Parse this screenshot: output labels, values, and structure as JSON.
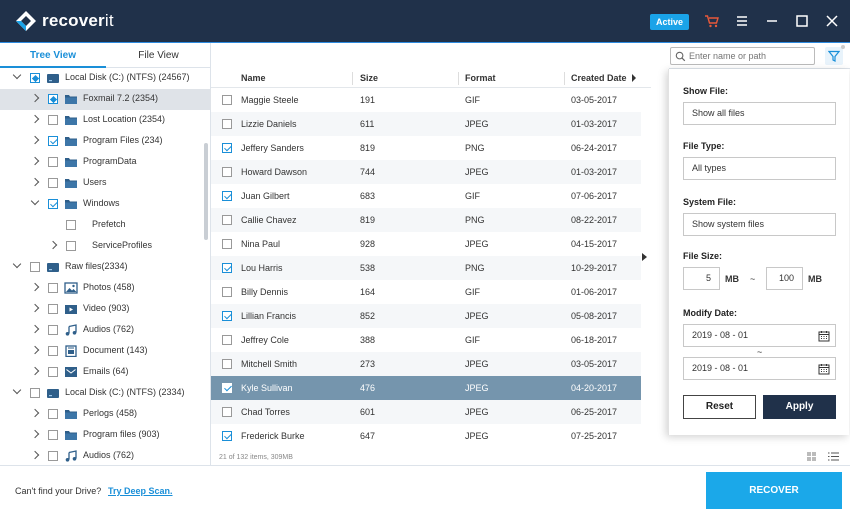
{
  "app": {
    "name_bold": "recover",
    "name_light": "it",
    "status_badge": "Active"
  },
  "colors": {
    "topbar": "#20314a",
    "accent": "#1a8fd8",
    "cart": "#e8593a",
    "recover_button": "#1ba8e9"
  },
  "tabs": {
    "tree": "Tree View",
    "file": "File View"
  },
  "tree": [
    {
      "label": "Local Disk (C:) (NTFS) (24567)",
      "level": 0,
      "expand": "down",
      "check": "part",
      "icon": "drive-icon"
    },
    {
      "label": "Foxmail 7.2 (2354)",
      "level": 1,
      "expand": "right",
      "check": "part",
      "icon": "folder-icon",
      "selected": true
    },
    {
      "label": "Lost Location (2354)",
      "level": 1,
      "expand": "right",
      "check": "off",
      "icon": "folder-icon"
    },
    {
      "label": "Program Files (234)",
      "level": 1,
      "expand": "right",
      "check": "on",
      "icon": "folder-icon"
    },
    {
      "label": "ProgramData",
      "level": 1,
      "expand": "right",
      "check": "off",
      "icon": "folder-icon"
    },
    {
      "label": "Users",
      "level": 1,
      "expand": "right",
      "check": "off",
      "icon": "folder-icon"
    },
    {
      "label": "Windows",
      "level": 1,
      "expand": "down",
      "check": "on",
      "icon": "folder-icon"
    },
    {
      "label": "Prefetch",
      "level": 2,
      "expand": "none",
      "check": "off",
      "icon": "none"
    },
    {
      "label": "ServiceProfiles",
      "level": 2,
      "expand": "right",
      "check": "off",
      "icon": "none"
    },
    {
      "label": "Raw files(2334)",
      "level": 0,
      "expand": "down",
      "check": "off",
      "icon": "drive-icon"
    },
    {
      "label": "Photos (458)",
      "level": 1,
      "expand": "right",
      "check": "off",
      "icon": "photo-icon"
    },
    {
      "label": "Video (903)",
      "level": 1,
      "expand": "right",
      "check": "off",
      "icon": "video-icon"
    },
    {
      "label": "Audios (762)",
      "level": 1,
      "expand": "right",
      "check": "off",
      "icon": "music-icon"
    },
    {
      "label": "Document (143)",
      "level": 1,
      "expand": "right",
      "check": "off",
      "icon": "document-icon"
    },
    {
      "label": "Emails (64)",
      "level": 1,
      "expand": "right",
      "check": "off",
      "icon": "email-icon"
    },
    {
      "label": "Local Disk (C:) (NTFS) (2334)",
      "level": 0,
      "expand": "down",
      "check": "off",
      "icon": "drive-icon"
    },
    {
      "label": "Perlogs (458)",
      "level": 1,
      "expand": "right",
      "check": "off",
      "icon": "folder-icon"
    },
    {
      "label": "Program files (903)",
      "level": 1,
      "expand": "right",
      "check": "off",
      "icon": "folder-icon"
    },
    {
      "label": "Audios (762)",
      "level": 1,
      "expand": "right",
      "check": "off",
      "icon": "music-icon"
    }
  ],
  "search": {
    "placeholder": "Enter name or path"
  },
  "columns": {
    "name": "Name",
    "size": "Size",
    "format": "Format",
    "created": "Created Date"
  },
  "files": [
    {
      "name": "Maggie Steele",
      "size": "191",
      "format": "GIF",
      "date": "03-05-2017",
      "checked": false
    },
    {
      "name": "Lizzie Daniels",
      "size": "611",
      "format": "JPEG",
      "date": "01-03-2017",
      "checked": false
    },
    {
      "name": "Jeffery Sanders",
      "size": "819",
      "format": "PNG",
      "date": "06-24-2017",
      "checked": true
    },
    {
      "name": "Howard Dawson",
      "size": "744",
      "format": "JPEG",
      "date": "01-03-2017",
      "checked": false
    },
    {
      "name": "Juan Gilbert",
      "size": "683",
      "format": "GIF",
      "date": "07-06-2017",
      "checked": true
    },
    {
      "name": "Callie Chavez",
      "size": "819",
      "format": "PNG",
      "date": "08-22-2017",
      "checked": false
    },
    {
      "name": "Nina Paul",
      "size": "928",
      "format": "JPEG",
      "date": "04-15-2017",
      "checked": false
    },
    {
      "name": "Lou Harris",
      "size": "538",
      "format": "PNG",
      "date": "10-29-2017",
      "checked": true
    },
    {
      "name": "Billy Dennis",
      "size": "164",
      "format": "GIF",
      "date": "01-06-2017",
      "checked": false
    },
    {
      "name": "Lillian Francis",
      "size": "852",
      "format": "JPEG",
      "date": "05-08-2017",
      "checked": true
    },
    {
      "name": "Jeffrey Cole",
      "size": "388",
      "format": "GIF",
      "date": "06-18-2017",
      "checked": false
    },
    {
      "name": "Mitchell Smith",
      "size": "273",
      "format": "JPEG",
      "date": "03-05-2017",
      "checked": false
    },
    {
      "name": "Kyle Sullivan",
      "size": "476",
      "format": "JPEG",
      "date": "04-20-2017",
      "checked": true,
      "highlight": true
    },
    {
      "name": "Chad Torres",
      "size": "601",
      "format": "JPEG",
      "date": "06-25-2017",
      "checked": false
    },
    {
      "name": "Frederick Burke",
      "size": "647",
      "format": "JPEG",
      "date": "07-25-2017",
      "checked": true
    }
  ],
  "list_footer": "21 of 132 items, 309MB",
  "filter": {
    "show_file_label": "Show File:",
    "show_file_value": "Show all files",
    "file_type_label": "File Type:",
    "file_type_value": "All types",
    "system_file_label": "System File:",
    "system_file_value": "Show system files",
    "file_size_label": "File Size:",
    "size_min": "5",
    "size_max": "100",
    "size_unit": "MB",
    "size_sep": "~",
    "modify_date_label": "Modify Date:",
    "date_from": "2019 - 08 - 01",
    "date_to": "2019 - 08 - 01",
    "date_sep": "~",
    "reset": "Reset",
    "apply": "Apply"
  },
  "bottom": {
    "message": "Can't find your Drive?",
    "link": "Try Deep Scan.",
    "recover": "RECOVER"
  }
}
